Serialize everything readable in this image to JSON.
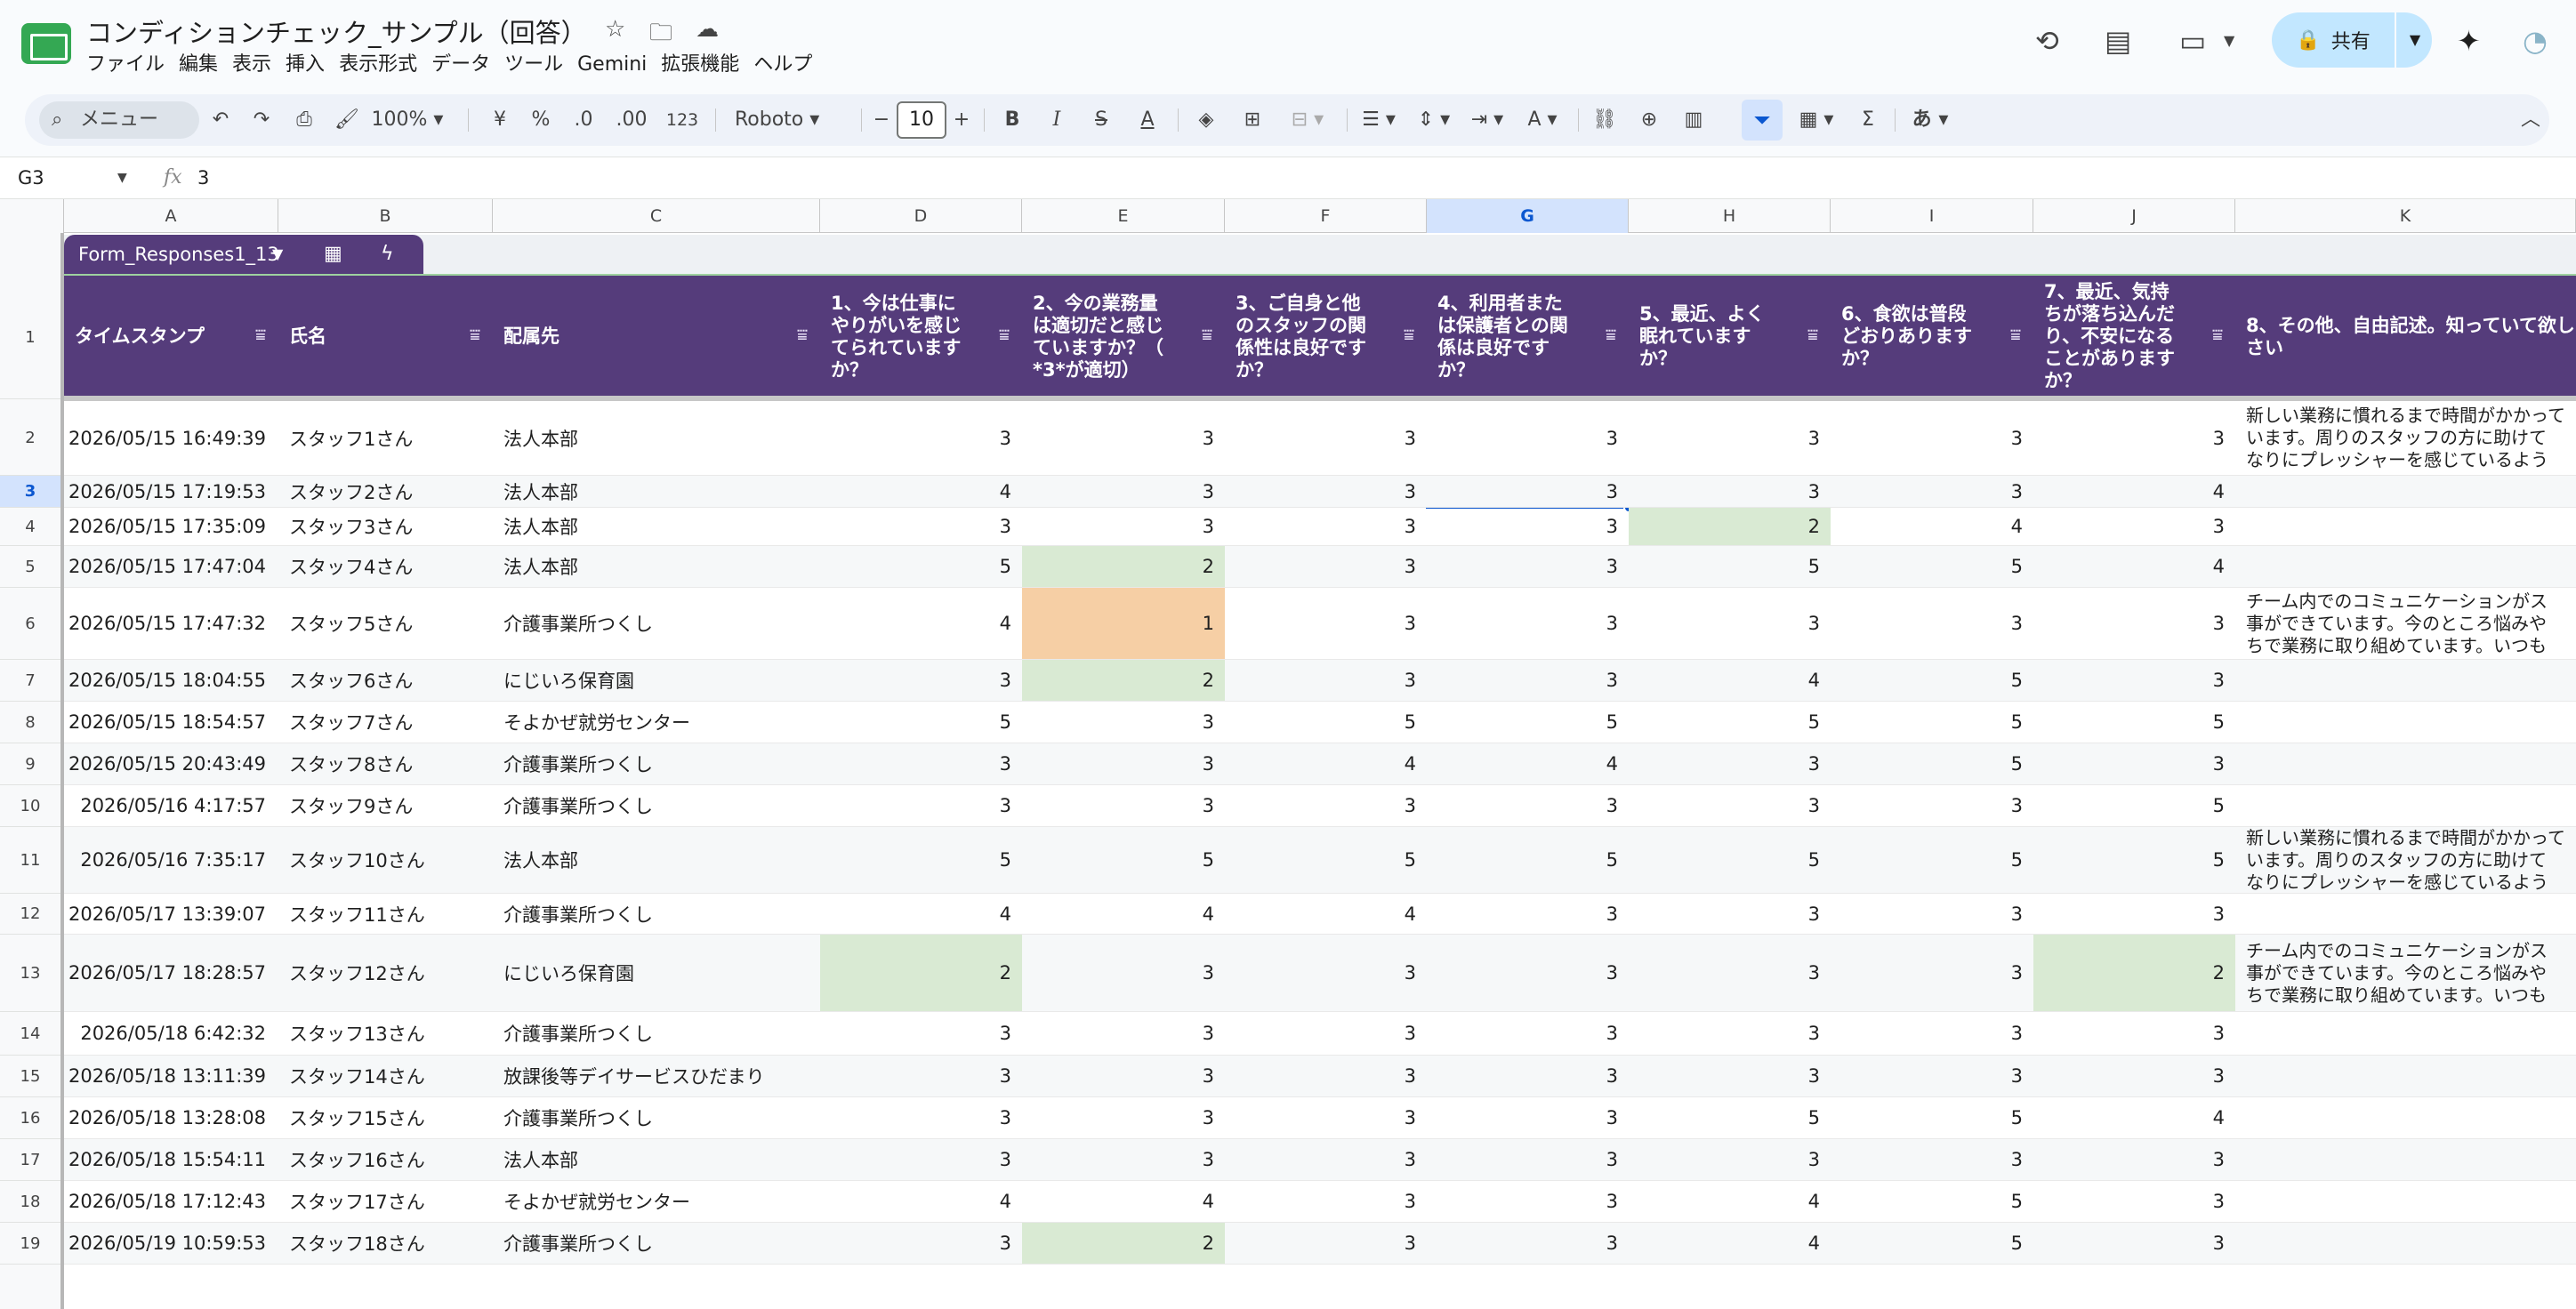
{
  "app": {
    "title": "コンディションチェック_サンプル（回答）",
    "menu": [
      "ファイル",
      "編集",
      "表示",
      "挿入",
      "表示形式",
      "データ",
      "ツール",
      "Gemini",
      "拡張機能",
      "ヘルプ"
    ],
    "share_label": "共有"
  },
  "toolbar": {
    "search_label": "メニュー",
    "zoom": "100%",
    "currency": "¥",
    "percent": "%",
    "dec_less": ".0",
    "dec_more": ".00",
    "number_format": "123",
    "font": "Roboto",
    "font_size": "10",
    "bold": "B",
    "italic": "I",
    "strike": "S",
    "text_color": "A",
    "ime": "あ"
  },
  "formula_bar": {
    "cell_ref": "G3",
    "value": "3"
  },
  "columns": [
    "A",
    "B",
    "C",
    "D",
    "E",
    "F",
    "G",
    "H",
    "I",
    "J",
    "K"
  ],
  "selected_column": "G",
  "selected_row": "3",
  "table": {
    "name": "Form_Responses1_13",
    "headers": [
      [
        "タイムスタンプ"
      ],
      [
        "氏名"
      ],
      [
        "配属先"
      ],
      [
        "1、今は仕事に",
        "やりがいを感じ",
        "てられています",
        "か？"
      ],
      [
        "2、今の業務量",
        "は適切だと感じ",
        "ていますか？（",
        "*3*が適切）"
      ],
      [
        "3、ご自身と他",
        "のスタッフの関",
        "係性は良好です",
        "か？"
      ],
      [
        "4、利用者また",
        "は保護者との関",
        "係は良好です",
        "か？"
      ],
      [
        "5、最近、よく",
        "眠れています",
        "か？"
      ],
      [
        "6、食欲は普段",
        "どおりあります",
        "か？"
      ],
      [
        "7、最近、気持",
        "ちが落ち込んだ",
        "り、不安になる",
        "ことがあります",
        "か？"
      ],
      [
        "8、その他、自由記述。知っていて欲し",
        "さい"
      ]
    ],
    "rows": [
      {
        "num": "2",
        "ts": "2026/05/15 16:49:39",
        "name": "スタッフ1さん",
        "dept": "法人本部",
        "v": [
          "3",
          "3",
          "3",
          "3",
          "3",
          "3",
          "3"
        ],
        "note": [
          "新しい業務に慣れるまで時間がかかって",
          "います。周りのスタッフの方に助けて",
          "なりにプレッシャーを感じているよう"
        ]
      },
      {
        "num": "3",
        "ts": "2026/05/15 17:19:53",
        "name": "スタッフ2さん",
        "dept": "法人本部",
        "v": [
          "4",
          "3",
          "3",
          "3",
          "3",
          "3",
          "4"
        ],
        "note": []
      },
      {
        "num": "4",
        "ts": "2026/05/15 17:35:09",
        "name": "スタッフ3さん",
        "dept": "法人本部",
        "v": [
          "3",
          "3",
          "3",
          "3",
          "2",
          "4",
          "3"
        ],
        "note": []
      },
      {
        "num": "5",
        "ts": "2026/05/15 17:47:04",
        "name": "スタッフ4さん",
        "dept": "法人本部",
        "v": [
          "5",
          "2",
          "3",
          "3",
          "5",
          "5",
          "4"
        ],
        "note": []
      },
      {
        "num": "6",
        "ts": "2026/05/15 17:47:32",
        "name": "スタッフ5さん",
        "dept": "介護事業所つくし",
        "v": [
          "4",
          "1",
          "3",
          "3",
          "3",
          "3",
          "3"
        ],
        "note": [
          "チーム内でのコミュニケーションがス",
          "事ができています。今のところ悩みや",
          "ちで業務に取り組めています。いつも"
        ]
      },
      {
        "num": "7",
        "ts": "2026/05/15 18:04:55",
        "name": "スタッフ6さん",
        "dept": "にじいろ保育園",
        "v": [
          "3",
          "2",
          "3",
          "3",
          "4",
          "5",
          "3"
        ],
        "note": []
      },
      {
        "num": "8",
        "ts": "2026/05/15 18:54:57",
        "name": "スタッフ7さん",
        "dept": "そよかぜ就労センター",
        "v": [
          "5",
          "3",
          "5",
          "5",
          "5",
          "5",
          "5"
        ],
        "note": []
      },
      {
        "num": "9",
        "ts": "2026/05/15 20:43:49",
        "name": "スタッフ8さん",
        "dept": "介護事業所つくし",
        "v": [
          "3",
          "3",
          "4",
          "4",
          "3",
          "5",
          "3"
        ],
        "note": []
      },
      {
        "num": "10",
        "ts": "2026/05/16 4:17:57",
        "name": "スタッフ9さん",
        "dept": "介護事業所つくし",
        "v": [
          "3",
          "3",
          "3",
          "3",
          "3",
          "3",
          "5"
        ],
        "note": []
      },
      {
        "num": "11",
        "ts": "2026/05/16 7:35:17",
        "name": "スタッフ10さん",
        "dept": "法人本部",
        "v": [
          "5",
          "5",
          "5",
          "5",
          "5",
          "5",
          "5"
        ],
        "note": [
          "新しい業務に慣れるまで時間がかかって",
          "います。周りのスタッフの方に助けて",
          "なりにプレッシャーを感じているよう"
        ]
      },
      {
        "num": "12",
        "ts": "2026/05/17 13:39:07",
        "name": "スタッフ11さん",
        "dept": "介護事業所つくし",
        "v": [
          "4",
          "4",
          "4",
          "3",
          "3",
          "3",
          "3"
        ],
        "note": []
      },
      {
        "num": "13",
        "ts": "2026/05/17 18:28:57",
        "name": "スタッフ12さん",
        "dept": "にじいろ保育園",
        "v": [
          "2",
          "3",
          "3",
          "3",
          "3",
          "3",
          "2"
        ],
        "note": [
          "チーム内でのコミュニケーションがス",
          "事ができています。今のところ悩みや",
          "ちで業務に取り組めています。いつも"
        ]
      },
      {
        "num": "14",
        "ts": "2026/05/18 6:42:32",
        "name": "スタッフ13さん",
        "dept": "介護事業所つくし",
        "v": [
          "3",
          "3",
          "3",
          "3",
          "3",
          "3",
          "3"
        ],
        "note": []
      },
      {
        "num": "15",
        "ts": "2026/05/18 13:11:39",
        "name": "スタッフ14さん",
        "dept": "放課後等デイサービスひだまり",
        "v": [
          "3",
          "3",
          "3",
          "3",
          "3",
          "3",
          "3"
        ],
        "note": []
      },
      {
        "num": "16",
        "ts": "2026/05/18 13:28:08",
        "name": "スタッフ15さん",
        "dept": "介護事業所つくし",
        "v": [
          "3",
          "3",
          "3",
          "3",
          "5",
          "5",
          "4"
        ],
        "note": []
      },
      {
        "num": "17",
        "ts": "2026/05/18 15:54:11",
        "name": "スタッフ16さん",
        "dept": "法人本部",
        "v": [
          "3",
          "3",
          "3",
          "3",
          "3",
          "3",
          "3"
        ],
        "note": []
      },
      {
        "num": "18",
        "ts": "2026/05/18 17:12:43",
        "name": "スタッフ17さん",
        "dept": "そよかぜ就労センター",
        "v": [
          "4",
          "4",
          "3",
          "3",
          "4",
          "5",
          "3"
        ],
        "note": []
      },
      {
        "num": "19",
        "ts": "2026/05/19 10:59:53",
        "name": "スタッフ18さん",
        "dept": "介護事業所つくし",
        "v": [
          "3",
          "2",
          "3",
          "3",
          "4",
          "5",
          "3"
        ],
        "note": []
      }
    ]
  },
  "colors": {
    "header_bg": "#553c7b",
    "highlight_green": "#d9ead3",
    "highlight_orange": "#f6cfa5",
    "selection": "#0b57d0"
  }
}
